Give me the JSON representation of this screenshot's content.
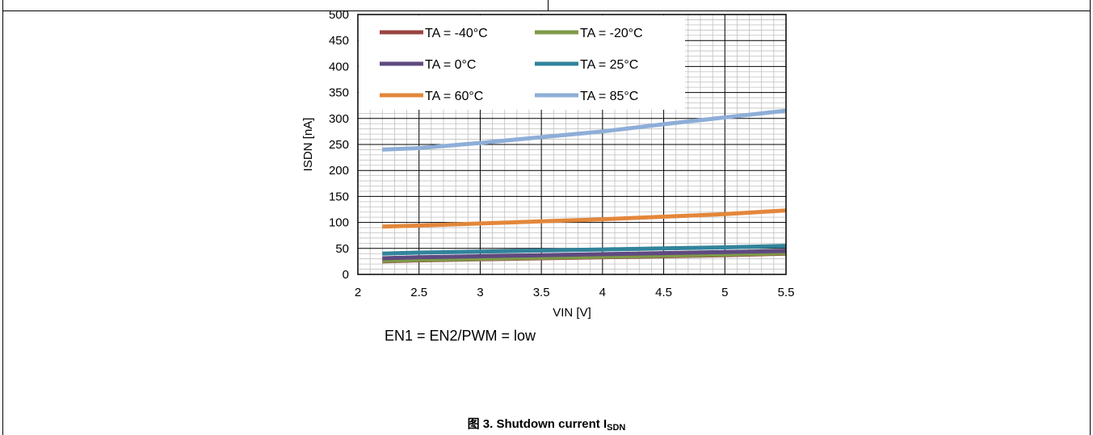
{
  "note": "EN1 = EN2/PWM = low",
  "caption": {
    "prefix": "图 3. Shutdown current I",
    "subscript": "SDN"
  },
  "chart_data": {
    "type": "line",
    "xlabel": "VIN [V]",
    "ylabel": "ISDN [nA]",
    "xlim": [
      2,
      5.5
    ],
    "ylim": [
      0,
      500
    ],
    "x_ticks": [
      "2",
      "2.5",
      "3",
      "3.5",
      "4",
      "4.5",
      "5",
      "5.5"
    ],
    "y_ticks": [
      "0",
      "50",
      "100",
      "150",
      "200",
      "250",
      "300",
      "350",
      "400",
      "450",
      "500"
    ],
    "grid": "major and minor",
    "legend_position": "top-left inside plot",
    "x": [
      2.2,
      2.5,
      3,
      3.5,
      4,
      4.5,
      5,
      5.5
    ],
    "series": [
      {
        "name": "TA = -40°C",
        "color": "#984542",
        "values": [
          25,
          27,
          29,
          31,
          33,
          35,
          37,
          40
        ]
      },
      {
        "name": "TA = -20°C",
        "color": "#7f9a48",
        "values": [
          26,
          28,
          30,
          32,
          34,
          36,
          38,
          41
        ]
      },
      {
        "name": "TA = 0°C",
        "color": "#5f4a80",
        "values": [
          31,
          33,
          35,
          37,
          39,
          41,
          43,
          45
        ]
      },
      {
        "name": "TA = 25°C",
        "color": "#31849b",
        "values": [
          40,
          42,
          44,
          46,
          48,
          50,
          52,
          55
        ]
      },
      {
        "name": "TA = 60°C",
        "color": "#e3873b",
        "values": [
          92,
          94,
          98,
          102,
          106,
          111,
          116,
          123
        ]
      },
      {
        "name": "TA = 85°C",
        "color": "#8eaed8",
        "values": [
          240,
          243,
          253,
          264,
          275,
          289,
          302,
          315
        ]
      }
    ]
  }
}
